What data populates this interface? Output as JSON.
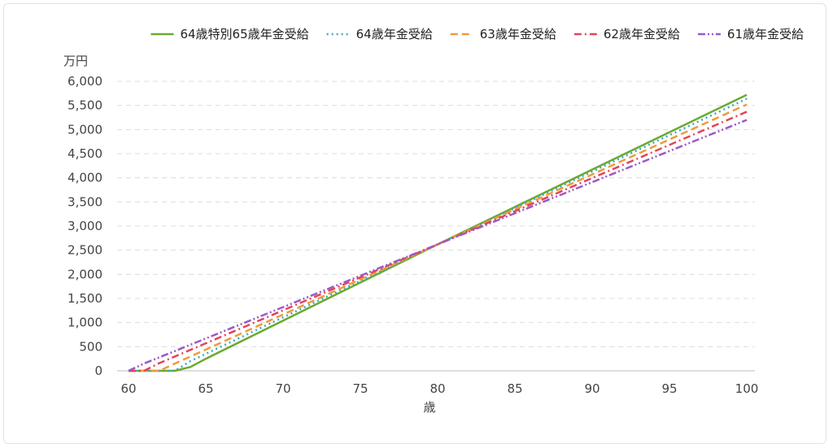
{
  "chart_data": {
    "type": "line",
    "title": "",
    "xlabel": "歳",
    "ylabel": "万円",
    "xlim": [
      60,
      100
    ],
    "ylim": [
      0,
      6000
    ],
    "x_ticks": [
      "60",
      "65",
      "70",
      "75",
      "80",
      "85",
      "90",
      "95",
      "100"
    ],
    "y_ticks": [
      "0",
      "500",
      "1,000",
      "1,500",
      "2,000",
      "2,500",
      "3,000",
      "3,500",
      "4,000",
      "4,500",
      "5,000",
      "5,500",
      "6,000"
    ],
    "grid": true,
    "legend_position": "top-right",
    "series": [
      {
        "name": "64歳特別65歳年金受給",
        "color": "#6aaa2e",
        "dash": "solid",
        "points": [
          [
            60,
            0
          ],
          [
            63,
            0
          ],
          [
            64,
            80
          ],
          [
            65,
            250
          ],
          [
            80,
            2620
          ],
          [
            100,
            5720
          ]
        ]
      },
      {
        "name": "64歳年金受給",
        "color": "#3fa7c6",
        "dash": "dot",
        "points": [
          [
            60,
            0
          ],
          [
            63,
            0
          ],
          [
            64,
            200
          ],
          [
            80,
            2620
          ],
          [
            100,
            5640
          ]
        ]
      },
      {
        "name": "63歳年金受給",
        "color": "#f19a38",
        "dash": "dash",
        "points": [
          [
            60,
            0
          ],
          [
            62,
            0
          ],
          [
            63,
            150
          ],
          [
            80,
            2620
          ],
          [
            100,
            5520
          ]
        ]
      },
      {
        "name": "62歳年金受給",
        "color": "#e0455a",
        "dash": "dashdot",
        "points": [
          [
            60,
            0
          ],
          [
            61,
            0
          ],
          [
            62,
            160
          ],
          [
            80,
            2620
          ],
          [
            100,
            5370
          ]
        ]
      },
      {
        "name": "61歳年金受給",
        "color": "#9b59c7",
        "dash": "dashdotdot",
        "points": [
          [
            60,
            0
          ],
          [
            61,
            150
          ],
          [
            80,
            2620
          ],
          [
            100,
            5200
          ]
        ]
      }
    ]
  }
}
